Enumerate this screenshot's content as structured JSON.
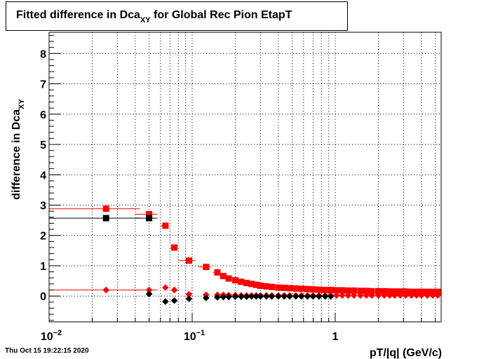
{
  "timestamp": "Thu Oct 15 19:22:15 2020",
  "chart_data": {
    "type": "scatter",
    "title_main": "Fitted difference in Dca",
    "title_sub": "XY",
    "title_rest": " for Global Rec Pion EtapT",
    "xlabel": "pT/|q| (GeV/c)",
    "ylabel_main": "difference in Dca",
    "ylabel_sub": "XY",
    "x_scale": "log",
    "xlim": [
      0.01,
      5.5
    ],
    "ylim": [
      -0.85,
      8.7
    ],
    "grid": true,
    "x_ticks": [
      {
        "value": 0.01,
        "base": "10",
        "exp": "−2"
      },
      {
        "value": 0.1,
        "base": "10",
        "exp": "−1"
      },
      {
        "value": 1,
        "base": "1",
        "exp": ""
      }
    ],
    "y_ticks": [
      "0",
      "1",
      "2",
      "3",
      "4",
      "5",
      "6",
      "7",
      "8"
    ],
    "series": [
      {
        "marker": "square",
        "color": "#ff0000",
        "x": [
          0.025,
          0.05,
          0.065,
          0.075,
          0.095,
          0.125,
          0.15,
          0.165,
          0.18,
          0.2,
          0.22,
          0.24,
          0.26,
          0.28,
          0.3,
          0.33,
          0.36,
          0.4,
          0.44,
          0.48,
          0.53,
          0.58,
          0.64,
          0.7,
          0.77,
          0.85,
          0.93,
          1.02,
          1.12,
          1.23,
          1.35,
          1.5,
          1.65,
          1.8,
          2.0,
          2.2,
          2.4,
          2.6,
          2.85,
          3.1,
          3.4,
          3.7,
          4.0,
          4.4,
          4.8,
          5.2
        ],
        "y": [
          2.88,
          2.7,
          2.32,
          1.6,
          1.17,
          0.96,
          0.78,
          0.66,
          0.58,
          0.52,
          0.47,
          0.43,
          0.4,
          0.37,
          0.34,
          0.32,
          0.3,
          0.28,
          0.27,
          0.26,
          0.25,
          0.24,
          0.23,
          0.22,
          0.21,
          0.2,
          0.2,
          0.19,
          0.19,
          0.18,
          0.18,
          0.17,
          0.17,
          0.16,
          0.16,
          0.16,
          0.15,
          0.15,
          0.15,
          0.15,
          0.14,
          0.14,
          0.14,
          0.14,
          0.14,
          0.14
        ],
        "x_lo": [
          0.01,
          0.04,
          0.06,
          0.07,
          0.08,
          0.11,
          0.14
        ]
      },
      {
        "marker": "square",
        "color": "#000000",
        "x": [
          0.025,
          0.05
        ],
        "y": [
          2.57,
          2.57
        ],
        "x_lo": [
          0.01,
          0.04
        ]
      },
      {
        "marker": "diamond",
        "color": "#ff0000",
        "x": [
          0.025,
          0.05,
          0.065,
          0.075,
          0.095,
          0.125,
          0.15,
          0.165,
          0.18,
          0.2,
          0.22,
          0.24,
          0.26,
          0.28,
          0.3,
          0.33,
          0.36,
          0.4,
          0.44,
          0.48,
          0.53,
          0.58,
          0.64,
          0.7,
          0.77,
          0.85,
          0.93,
          1.02,
          1.12,
          1.23,
          1.35,
          1.5,
          1.65,
          1.8,
          2.0,
          2.2,
          2.4,
          2.6,
          2.85,
          3.1,
          3.4,
          3.7,
          4.0,
          4.4,
          4.8,
          5.2
        ],
        "y": [
          0.2,
          0.2,
          0.28,
          0.2,
          0.06,
          0.04,
          0.04,
          0.04,
          0.03,
          0.03,
          0.02,
          0.02,
          0.02,
          0.02,
          0.02,
          0.02,
          0.02,
          0.02,
          0.02,
          0.02,
          0.02,
          0.02,
          0.02,
          0.02,
          0.02,
          0.02,
          0.02,
          0.02,
          0.02,
          0.02,
          0.02,
          0.02,
          0.02,
          0.02,
          0.02,
          0.02,
          0.02,
          0.02,
          0.02,
          0.02,
          0.02,
          0.02,
          0.02,
          0.02,
          0.02,
          0.02
        ],
        "x_lo": [
          0.01,
          0.04
        ]
      },
      {
        "marker": "diamond",
        "color": "#000000",
        "x": [
          0.05,
          0.065,
          0.075,
          0.095,
          0.125,
          0.15,
          0.165,
          0.18,
          0.2,
          0.22,
          0.24,
          0.26,
          0.28,
          0.3,
          0.33,
          0.36,
          0.4,
          0.44,
          0.48,
          0.53,
          0.58,
          0.64,
          0.7,
          0.77,
          0.85,
          0.93
        ],
        "y": [
          0.07,
          -0.18,
          -0.15,
          -0.09,
          -0.06,
          -0.04,
          -0.03,
          -0.03,
          -0.02,
          -0.02,
          -0.02,
          -0.01,
          -0.01,
          -0.01,
          -0.01,
          -0.01,
          -0.01,
          -0.01,
          -0.01,
          -0.01,
          -0.01,
          -0.01,
          -0.01,
          -0.01,
          -0.01,
          -0.01
        ]
      }
    ]
  }
}
